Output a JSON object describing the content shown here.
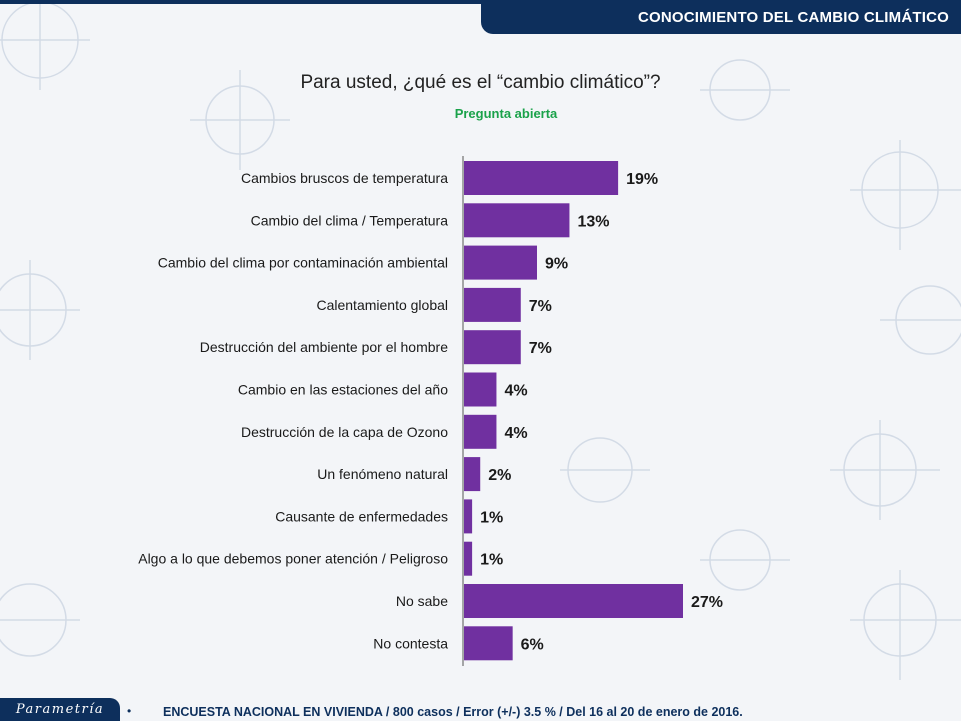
{
  "header": {
    "banner_title": "CONOCIMIENTO DEL CAMBIO CLIMÁTICO"
  },
  "question": {
    "title": "Para usted, ¿qué es el “cambio climático”?",
    "subtitle": "Pregunta abierta"
  },
  "colors": {
    "bar": "#7030a0",
    "banner": "#0d2f5c",
    "subtitle": "#1aa24a"
  },
  "chart_data": {
    "type": "bar",
    "orientation": "horizontal",
    "categories": [
      "Cambios bruscos de temperatura",
      "Cambio del clima / Temperatura",
      "Cambio del clima por contaminación ambiental",
      "Calentamiento global",
      "Destrucción del ambiente por el hombre",
      "Cambio en las estaciones del año",
      "Destrucción de la capa de Ozono",
      "Un fenómeno natural",
      "Causante de enfermedades",
      "Algo a lo que debemos poner atención / Peligroso",
      "No sabe",
      "No contesta"
    ],
    "values": [
      19,
      13,
      9,
      7,
      7,
      4,
      4,
      2,
      1,
      1,
      27,
      6
    ],
    "value_labels": [
      "19%",
      "13%",
      "9%",
      "7%",
      "7%",
      "4%",
      "4%",
      "2%",
      "1%",
      "1%",
      "27%",
      "6%"
    ],
    "xlim": [
      0,
      27
    ],
    "grid": false,
    "legend": "none"
  },
  "footer": {
    "logo_text": "Parametría",
    "bullet": "•",
    "note": "ENCUESTA NACIONAL EN VIVIENDA / 800 casos / Error (+/-) 3.5 % / Del 16 al 20 de enero de 2016."
  }
}
